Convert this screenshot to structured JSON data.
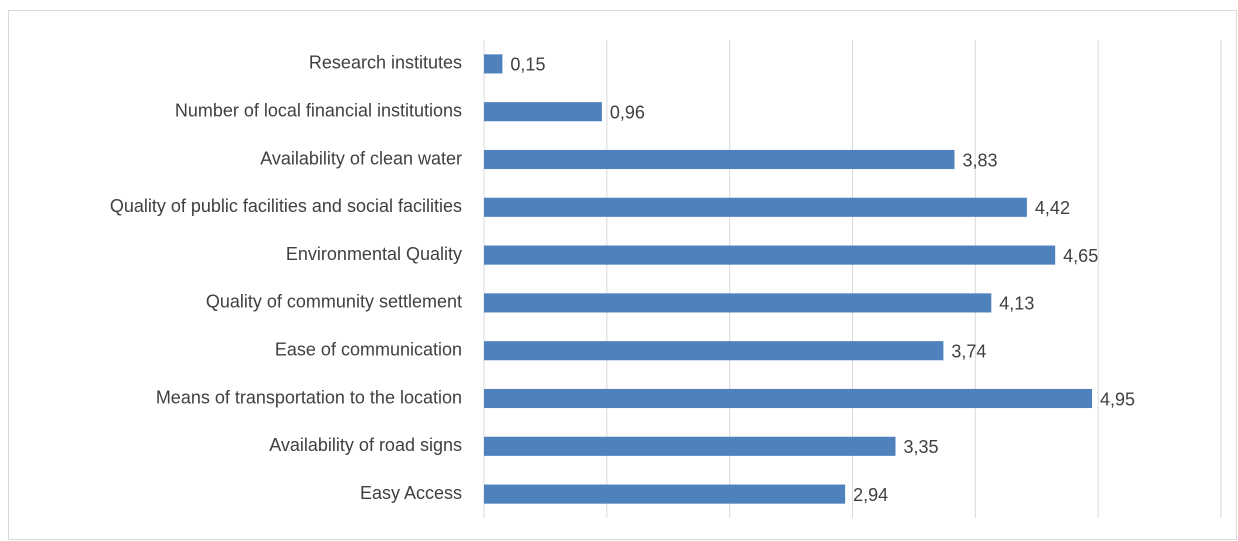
{
  "chart_data": {
    "type": "bar",
    "orientation": "horizontal",
    "categories": [
      "Research institutes",
      "Number of local financial institutions",
      "Availability of clean water",
      "Quality of public facilities and social facilities",
      "Environmental Quality",
      "Quality of community settlement",
      "Ease of communication",
      "Means of transportation to the location",
      "Availability of road signs",
      "Easy Access"
    ],
    "values": [
      0.15,
      0.96,
      3.83,
      4.42,
      4.65,
      4.13,
      3.74,
      4.95,
      3.35,
      2.94
    ],
    "value_labels": [
      "0,15",
      "0,96",
      "3,83",
      "4,42",
      "4,65",
      "4,13",
      "3,74",
      "4,95",
      "3,35",
      "2,94"
    ],
    "color": "#4f81bd",
    "xlim": [
      0,
      6
    ],
    "xticks": [
      0,
      1,
      2,
      3,
      4,
      5,
      6
    ],
    "grid": true
  }
}
